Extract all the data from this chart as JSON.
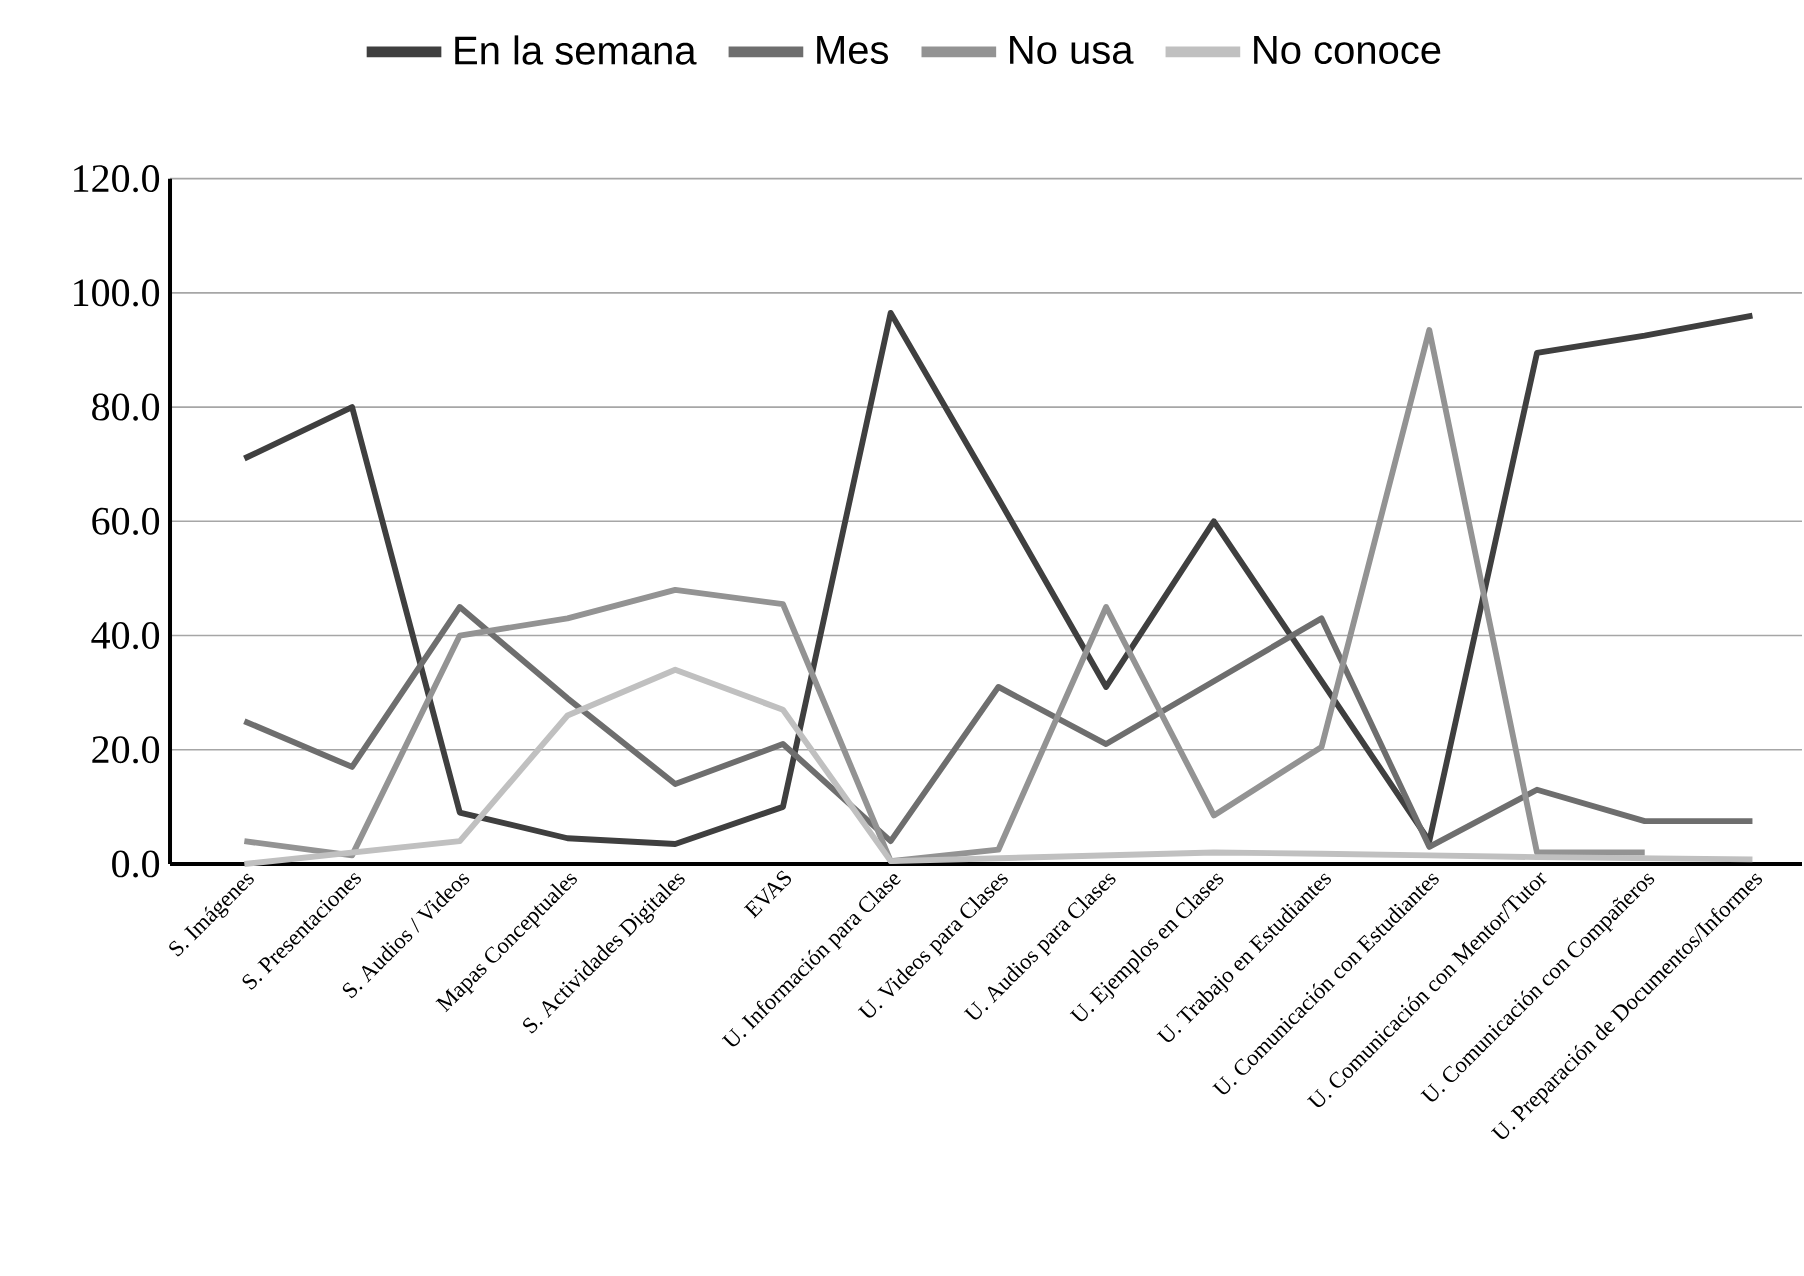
{
  "chart_data": {
    "type": "line",
    "categories": [
      "S. Imágenes",
      "S. Presentaciones",
      "S. Audios / Videos",
      "Mapas Conceptuales",
      "S. Actividades Digitales",
      "EVAS",
      "U. Información para Clase",
      "U. Videos para Clases",
      "U. Audios para Clases",
      "U. Ejemplos en Clases",
      "U. Trabajo en Estudiantes",
      "U. Comunicación con Estudiantes",
      "U. Comunicación con Mentor/Tutor",
      "U. Comunicación con Compañeros",
      "U. Preparación de Documentos/Informes"
    ],
    "series": [
      {
        "name": "En la semana",
        "color": "#3f3f3f",
        "values": [
          71,
          80,
          9,
          4.5,
          3.5,
          10,
          96.5,
          64,
          31,
          60,
          32,
          4,
          89.5,
          92.5,
          96
        ]
      },
      {
        "name": "Mes",
        "color": "#6e6e6e",
        "values": [
          25,
          17,
          45,
          29,
          14,
          21,
          4,
          31,
          21,
          32,
          43,
          3,
          13,
          7.5,
          7.5
        ]
      },
      {
        "name": "No usa",
        "color": "#939393",
        "values": [
          4,
          1.5,
          40,
          43,
          48,
          45.5,
          0.5,
          2.5,
          45,
          8.5,
          20.5,
          93.5,
          2,
          2,
          null
        ]
      },
      {
        "name": "No conoce",
        "color": "#c0c0c0",
        "values": [
          0,
          2,
          4,
          26,
          34,
          27,
          0.5,
          1,
          1.5,
          2,
          1.8,
          1.5,
          1.2,
          1,
          0.8
        ]
      }
    ],
    "ylim": [
      0,
      120
    ],
    "yticks": [
      {
        "value": 0,
        "label": "0.0"
      },
      {
        "value": 20,
        "label": "20.0"
      },
      {
        "value": 40,
        "label": "40.0"
      },
      {
        "value": 60,
        "label": "60.0"
      },
      {
        "value": 80,
        "label": "80.0"
      },
      {
        "value": 100,
        "label": "100.0"
      },
      {
        "value": 120,
        "label": "120.0"
      }
    ],
    "grid": "y",
    "legend": "top",
    "marker": "none",
    "line_style": "solid"
  }
}
